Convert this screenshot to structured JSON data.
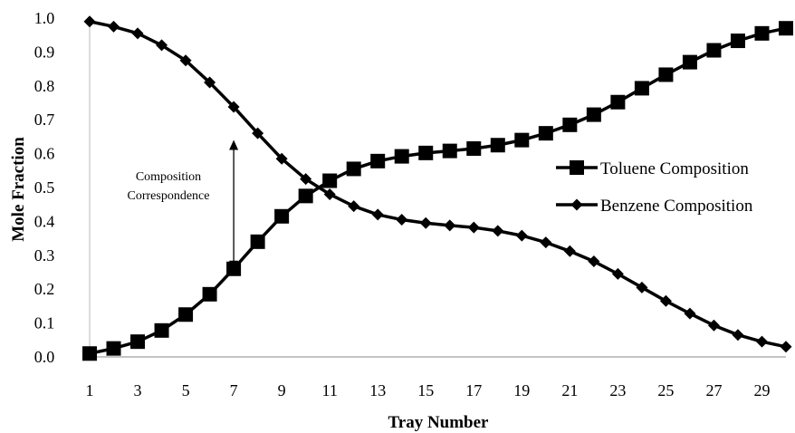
{
  "chart_data": {
    "type": "line",
    "xlabel": "Tray Number",
    "ylabel": "Mole Fraction",
    "ylim": [
      0,
      1
    ],
    "xlim": [
      1,
      30
    ],
    "x": [
      1,
      2,
      3,
      4,
      5,
      6,
      7,
      8,
      9,
      10,
      11,
      12,
      13,
      14,
      15,
      16,
      17,
      18,
      19,
      20,
      21,
      22,
      23,
      24,
      25,
      26,
      27,
      28,
      29,
      30
    ],
    "xticks": [
      "1",
      "3",
      "5",
      "7",
      "9",
      "11",
      "13",
      "15",
      "17",
      "19",
      "21",
      "23",
      "25",
      "27",
      "29"
    ],
    "yticks": [
      "0.0",
      "0.1",
      "0.2",
      "0.3",
      "0.4",
      "0.5",
      "0.6",
      "0.7",
      "0.8",
      "0.9",
      "1.0"
    ],
    "grid": false,
    "legend_position": "right",
    "series": [
      {
        "name": "Toluene Composition",
        "marker": "square",
        "color": "#000000",
        "values": [
          0.01,
          0.025,
          0.045,
          0.078,
          0.125,
          0.185,
          0.26,
          0.34,
          0.415,
          0.475,
          0.52,
          0.555,
          0.578,
          0.592,
          0.602,
          0.608,
          0.615,
          0.625,
          0.64,
          0.66,
          0.685,
          0.715,
          0.752,
          0.793,
          0.833,
          0.87,
          0.905,
          0.933,
          0.955,
          0.97
        ]
      },
      {
        "name": "Benzene Composition",
        "marker": "diamond",
        "color": "#000000",
        "values": [
          0.99,
          0.975,
          0.955,
          0.92,
          0.875,
          0.81,
          0.738,
          0.66,
          0.585,
          0.525,
          0.48,
          0.445,
          0.42,
          0.405,
          0.395,
          0.388,
          0.382,
          0.372,
          0.358,
          0.338,
          0.312,
          0.282,
          0.245,
          0.205,
          0.165,
          0.128,
          0.093,
          0.065,
          0.045,
          0.03
        ]
      }
    ],
    "annotations": [
      {
        "text_lines": [
          "Composition",
          "Correspondence"
        ],
        "x": 7,
        "y_from": 0.26,
        "y_to": 0.635
      }
    ]
  }
}
